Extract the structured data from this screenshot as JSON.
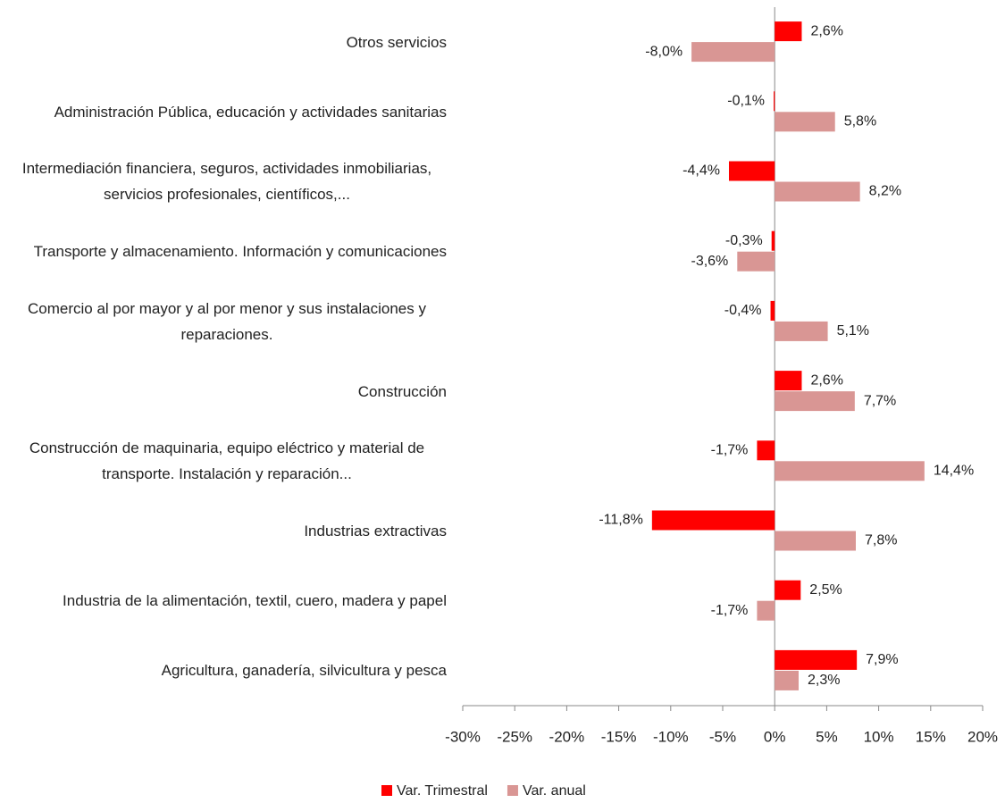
{
  "chart_data": {
    "type": "barh",
    "categories": [
      "Otros servicios",
      "Administración Pública, educación y actividades sanitarias",
      "Intermediación financiera, seguros, actividades inmobiliarias, servicios profesionales, científicos,...",
      "Transporte y almacenamiento. Información y comunicaciones",
      "Comercio al por mayor y al por menor y sus instalaciones y reparaciones.",
      "Construcción",
      "Construcción de maquinaria, equipo eléctrico y material de transporte. Instalación y reparación...",
      "Industrias extractivas",
      "Industria de la alimentación, textil, cuero, madera y papel",
      "Agricultura, ganadería, silvicultura y pesca"
    ],
    "series": [
      {
        "name": "Var. Trimestral",
        "color": "#ff0000",
        "values": [
          2.6,
          -0.1,
          -4.4,
          -0.3,
          -0.4,
          2.6,
          -1.7,
          -11.8,
          2.5,
          7.9
        ],
        "value_labels": [
          "2,6%",
          "-0,1%",
          "-4,4%",
          "-0,3%",
          "-0,4%",
          "2,6%",
          "-1,7%",
          "-11,8%",
          "2,5%",
          "7,9%"
        ]
      },
      {
        "name": "Var. anual",
        "color": "#d99694",
        "values": [
          -8.0,
          5.8,
          8.2,
          -3.6,
          5.1,
          7.7,
          14.4,
          7.8,
          -1.7,
          2.3
        ],
        "value_labels": [
          "-8,0%",
          "5,8%",
          "8,2%",
          "-3,6%",
          "5,1%",
          "7,7%",
          "14,4%",
          "7,8%",
          "-1,7%",
          "2,3%"
        ]
      }
    ],
    "xlim": [
      -30,
      20
    ],
    "xticks": [
      {
        "value": -30,
        "label": "-30%"
      },
      {
        "value": -25,
        "label": "-25%"
      },
      {
        "value": -20,
        "label": "-20%"
      },
      {
        "value": -15,
        "label": "-15%"
      },
      {
        "value": -10,
        "label": "-10%"
      },
      {
        "value": -5,
        "label": "-5%"
      },
      {
        "value": 0,
        "label": "0%"
      },
      {
        "value": 5,
        "label": "5%"
      },
      {
        "value": 10,
        "label": "10%"
      },
      {
        "value": 15,
        "label": "15%"
      },
      {
        "value": 20,
        "label": "20%"
      }
    ],
    "legend": "bottom"
  }
}
